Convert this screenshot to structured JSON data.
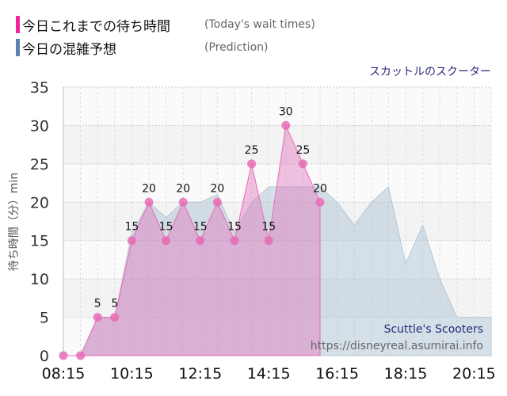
{
  "legend": [
    {
      "jp": "今日これまでの待ち時間",
      "en": "(Today's wait times)",
      "color": "#f0259a"
    },
    {
      "jp": "今日の混雑予想",
      "en": "(Prediction)",
      "color": "#5b82b0"
    }
  ],
  "attraction_jp": "スカットルのスクーター",
  "watermark": {
    "name": "Scuttle's Scooters",
    "url": "https://disneyreal.asumirai.info"
  },
  "chart_data": {
    "type": "area",
    "ylabel": "待ち時間（分）min",
    "ylim": [
      0,
      35
    ],
    "yticks": [
      0,
      5,
      10,
      15,
      20,
      25,
      30,
      35
    ],
    "xlim": [
      "08:15",
      "20:45"
    ],
    "xticks": [
      "08:15",
      "10:15",
      "12:15",
      "14:15",
      "16:15",
      "18:15",
      "20:15"
    ],
    "grid": true,
    "series": [
      {
        "name": "今日これまでの待ち時間",
        "color": "#e66bb5",
        "x": [
          "08:15",
          "08:45",
          "09:15",
          "09:45",
          "10:15",
          "10:45",
          "11:15",
          "11:45",
          "12:15",
          "12:45",
          "13:15",
          "13:45",
          "14:15",
          "14:45",
          "15:15",
          "15:45"
        ],
        "values": [
          0,
          0,
          5,
          5,
          15,
          20,
          15,
          20,
          15,
          20,
          15,
          25,
          15,
          30,
          25,
          20
        ]
      },
      {
        "name": "今日の混雑予想",
        "color": "#a9bfd0",
        "x": [
          "08:15",
          "08:45",
          "09:15",
          "09:45",
          "10:15",
          "10:45",
          "11:15",
          "11:45",
          "12:15",
          "12:45",
          "13:15",
          "13:45",
          "14:15",
          "14:45",
          "15:15",
          "15:45",
          "16:15",
          "16:45",
          "17:15",
          "17:45",
          "18:15",
          "18:45",
          "19:15",
          "19:45",
          "20:15",
          "20:45"
        ],
        "values": [
          0,
          0,
          5,
          5,
          16,
          20,
          18,
          20,
          20,
          21,
          16,
          20,
          22,
          22,
          22,
          22,
          20,
          17,
          20,
          22,
          12,
          17,
          10,
          5,
          5,
          5
        ]
      }
    ]
  }
}
